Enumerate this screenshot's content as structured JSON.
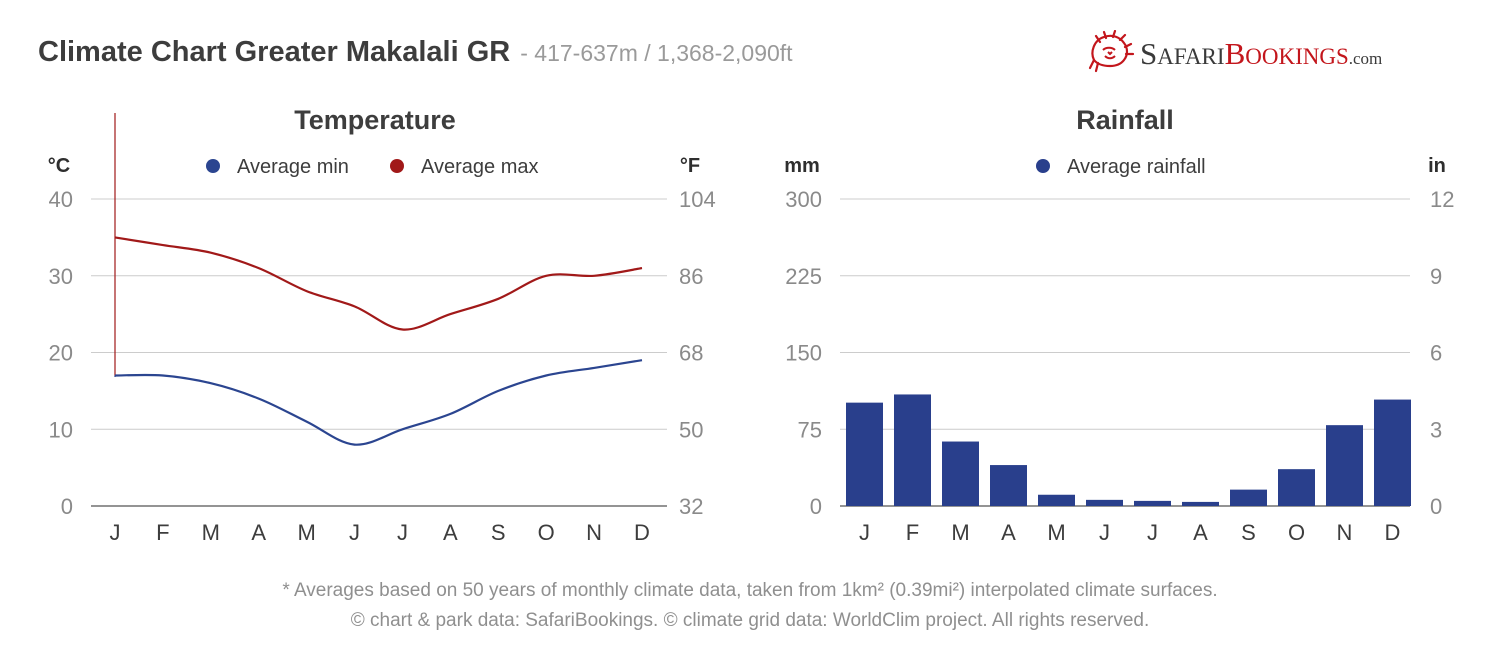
{
  "header": {
    "title": "Climate Chart Greater Makalali GR",
    "subtitle": "- 417-637m / 1,368-2,090ft"
  },
  "logo": {
    "cap1": "S",
    "rest1": "AFARI",
    "cap2": "B",
    "rest2": "OOKINGS",
    "domain": ".com"
  },
  "colors": {
    "min": "#2b4590",
    "max": "#a11919",
    "bar": "#293f8c",
    "grid": "#cccccc"
  },
  "chart_data": [
    {
      "type": "line",
      "title": "Temperature",
      "ylabel_left": "°C",
      "ylabel_right": "°F",
      "ylim": [
        0,
        40
      ],
      "yticks": [
        "0",
        "10",
        "20",
        "30",
        "40"
      ],
      "yticks_right": [
        "32",
        "50",
        "68",
        "86",
        "104"
      ],
      "categories": [
        "J",
        "F",
        "M",
        "A",
        "M",
        "J",
        "J",
        "A",
        "S",
        "O",
        "N",
        "D"
      ],
      "series": [
        {
          "name": "Average min",
          "values": [
            17,
            17,
            16,
            14,
            11,
            8,
            10,
            12,
            15,
            17,
            18,
            19
          ]
        },
        {
          "name": "Average max",
          "values": [
            35,
            34,
            33,
            31,
            28,
            26,
            23,
            25,
            27,
            30,
            30,
            31
          ]
        }
      ]
    },
    {
      "type": "bar",
      "title": "Rainfall",
      "ylabel_left": "mm",
      "ylabel_right": "in",
      "ylim": [
        0,
        300
      ],
      "yticks": [
        "0",
        "75",
        "150",
        "225",
        "300"
      ],
      "yticks_right": [
        "0",
        "3",
        "6",
        "9",
        "12"
      ],
      "categories": [
        "J",
        "F",
        "M",
        "A",
        "M",
        "J",
        "J",
        "A",
        "S",
        "O",
        "N",
        "D"
      ],
      "series": [
        {
          "name": "Average rainfall",
          "values": [
            101,
            109,
            63,
            40,
            11,
            6,
            5,
            4,
            16,
            36,
            79,
            104
          ]
        }
      ]
    }
  ],
  "footer": {
    "line1": "* Averages based on 50 years of monthly climate data, taken from 1km² (0.39mi²) interpolated climate surfaces.",
    "line2": "© chart & park data: SafariBookings. © climate grid data: WorldClim project. All rights reserved."
  }
}
